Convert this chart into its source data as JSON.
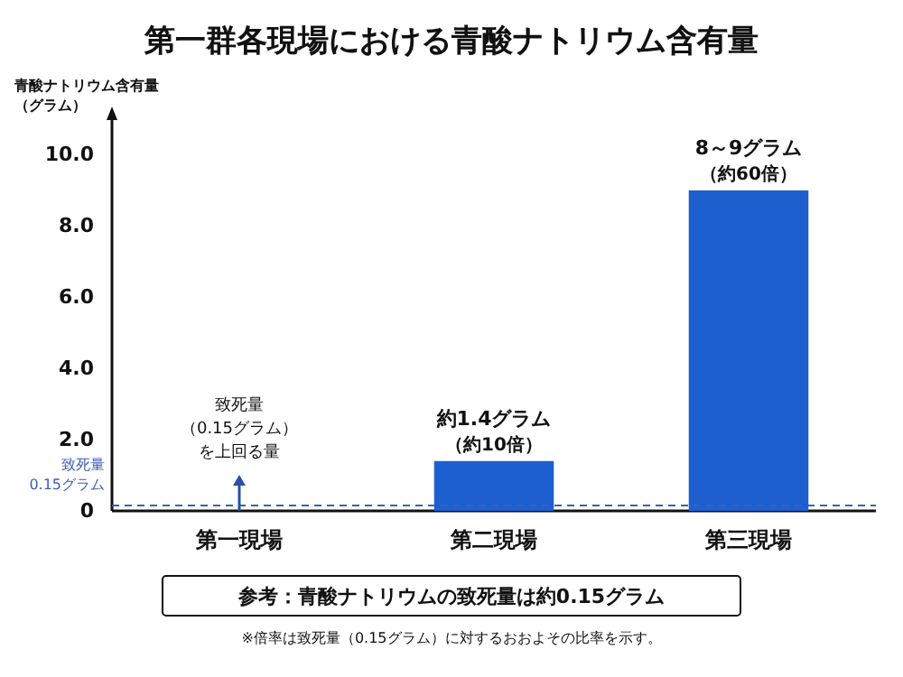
{
  "chart_data": {
    "type": "bar",
    "title": "第一群各現場における青酸ナトリウム含有量",
    "ylabel": "青酸ナトリウム含有量（グラム）",
    "categories": [
      "第一現場",
      "第二現場",
      "第三現場"
    ],
    "values": [
      null,
      1.4,
      9.0
    ],
    "value_labels": [
      null,
      "約1.4グラム",
      "8～9グラム"
    ],
    "color": "#1e5fcf",
    "ylim": [
      0,
      11
    ],
    "yticks": [
      0,
      {
        "value": 2,
        "label": "2.0"
      },
      {
        "value": 4,
        "label": "4.0"
      },
      {
        "value": 6,
        "label": "6.0"
      },
      {
        "value": 8,
        "label": "8.0"
      },
      {
        "value": 10,
        "label": "10.0"
      }
    ],
    "ref_lines": [
      {
        "axis": "y",
        "value": 0.15,
        "label": "致死量 0.15グラム",
        "color": "#3b5fb8",
        "line_style": "dashed"
      }
    ],
    "annotations": [
      "致死量（0.15グラム）を上回る量",
      {
        "text": "（約10倍）",
        "x": "第二現場",
        "y": 1.4
      },
      {
        "text": "（約60倍）",
        "x": "第三現場",
        "y": 9.0
      },
      "参考：青酸ナトリウムの致死量は約0.15グラム",
      "※倍率は致死量（0.15グラム）に対するおおよその比率を示す。"
    ],
    "grid": false
  }
}
